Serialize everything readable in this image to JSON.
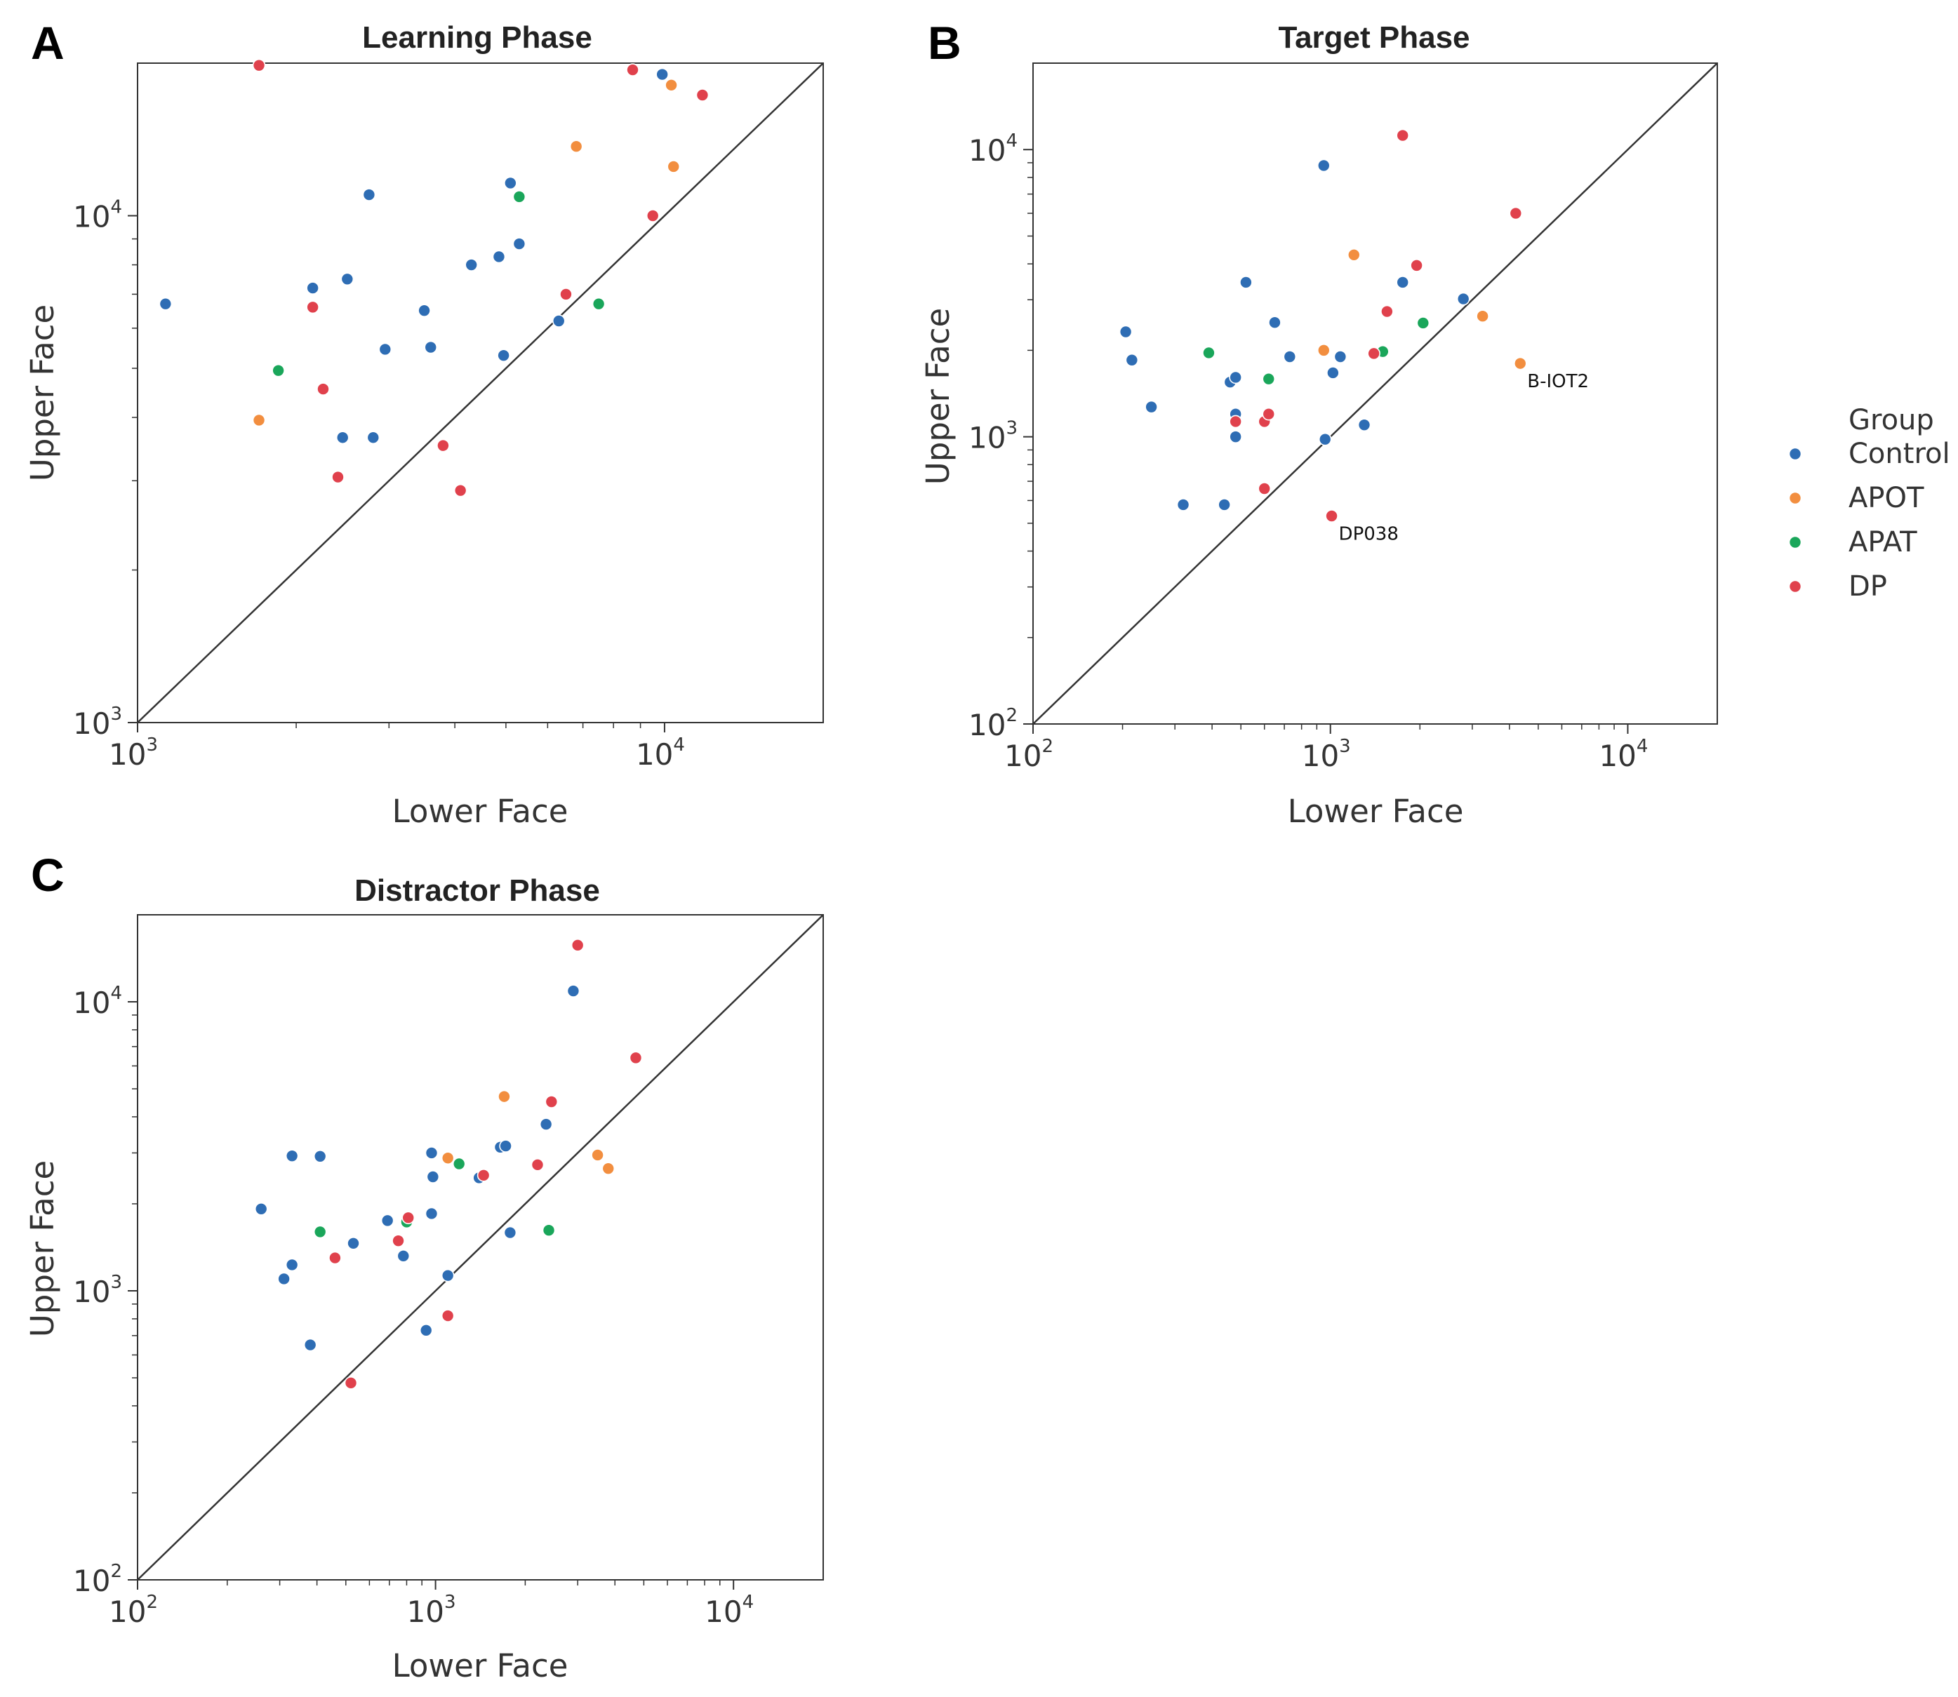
{
  "chart_data": [
    {
      "type": "scatter",
      "panel_letter": "A",
      "title": "Learning Phase",
      "xlabel": "Lower Face",
      "ylabel": "Upper Face",
      "scale": "log",
      "xlim": [
        1000,
        20000
      ],
      "ylim": [
        1000,
        20000
      ],
      "ticks": [
        {
          "base": "10",
          "exp": "3",
          "value": 1000
        },
        {
          "base": "10",
          "exp": "4",
          "value": 10000
        }
      ],
      "identity_line": true,
      "annotations": [],
      "series": [
        {
          "name": "Control",
          "points": [
            [
              1130,
              6700
            ],
            [
              2150,
              7200
            ],
            [
              2500,
              7500
            ],
            [
              2450,
              3650
            ],
            [
              2800,
              3650
            ],
            [
              2950,
              5450
            ],
            [
              2750,
              11000
            ],
            [
              3500,
              6500
            ],
            [
              3600,
              5500
            ],
            [
              4300,
              8000
            ],
            [
              4850,
              8300
            ],
            [
              5100,
              11600
            ],
            [
              5300,
              8800
            ],
            [
              4950,
              5300
            ],
            [
              6300,
              6200
            ],
            [
              9900,
              19000
            ]
          ]
        },
        {
          "name": "APOT",
          "points": [
            [
              1700,
              3950
            ],
            [
              6800,
              13700
            ],
            [
              10300,
              18100
            ],
            [
              10400,
              12500
            ]
          ]
        },
        {
          "name": "APAT",
          "points": [
            [
              1850,
              4950
            ],
            [
              5300,
              10900
            ],
            [
              7500,
              6700
            ]
          ]
        },
        {
          "name": "DP",
          "points": [
            [
              1700,
              19800
            ],
            [
              2150,
              6600
            ],
            [
              2250,
              4550
            ],
            [
              2400,
              3050
            ],
            [
              3800,
              3520
            ],
            [
              4100,
              2870
            ],
            [
              6500,
              7000
            ],
            [
              8700,
              19400
            ],
            [
              9500,
              10000
            ],
            [
              11800,
              17300
            ]
          ]
        }
      ]
    },
    {
      "type": "scatter",
      "panel_letter": "B",
      "title": "Target Phase",
      "xlabel": "Lower Face",
      "ylabel": "Upper Face",
      "scale": "log",
      "xlim": [
        100,
        20000
      ],
      "ylim": [
        100,
        20000
      ],
      "ticks": [
        {
          "base": "10",
          "exp": "2",
          "value": 100
        },
        {
          "base": "10",
          "exp": "3",
          "value": 1000
        },
        {
          "base": "10",
          "exp": "4",
          "value": 10000
        }
      ],
      "identity_line": true,
      "annotations": [
        {
          "text": "B-IOT2",
          "x": 4350,
          "y": 1800
        },
        {
          "text": "DP038",
          "x": 1010,
          "y": 530
        }
      ],
      "series": [
        {
          "name": "Control",
          "points": [
            [
              205,
              2320
            ],
            [
              215,
              1850
            ],
            [
              250,
              1270
            ],
            [
              320,
              580
            ],
            [
              440,
              580
            ],
            [
              460,
              1550
            ],
            [
              480,
              1610
            ],
            [
              480,
              1200
            ],
            [
              480,
              1000
            ],
            [
              520,
              3450
            ],
            [
              650,
              2500
            ],
            [
              730,
              1900
            ],
            [
              950,
              8800
            ],
            [
              960,
              980
            ],
            [
              1020,
              1670
            ],
            [
              1080,
              1900
            ],
            [
              1300,
              1100
            ],
            [
              1750,
              3450
            ],
            [
              2800,
              3020
            ]
          ]
        },
        {
          "name": "APOT",
          "points": [
            [
              950,
              2000
            ],
            [
              1200,
              4300
            ],
            [
              3250,
              2630
            ],
            [
              4350,
              1800
            ]
          ]
        },
        {
          "name": "APAT",
          "points": [
            [
              390,
              1960
            ],
            [
              620,
              1590
            ],
            [
              1500,
              1980
            ],
            [
              2050,
              2490
            ]
          ]
        },
        {
          "name": "DP",
          "points": [
            [
              480,
              1130
            ],
            [
              600,
              1130
            ],
            [
              600,
              660
            ],
            [
              620,
              1200
            ],
            [
              1010,
              530
            ],
            [
              1400,
              1950
            ],
            [
              1550,
              2730
            ],
            [
              1750,
              11200
            ],
            [
              1950,
              3950
            ],
            [
              4200,
              6000
            ]
          ]
        }
      ]
    },
    {
      "type": "scatter",
      "panel_letter": "C",
      "title": "Distractor Phase",
      "xlabel": "Lower Face",
      "ylabel": "Upper Face",
      "scale": "log",
      "xlim": [
        100,
        20000
      ],
      "ylim": [
        100,
        20000
      ],
      "ticks": [
        {
          "base": "10",
          "exp": "2",
          "value": 100
        },
        {
          "base": "10",
          "exp": "3",
          "value": 1000
        },
        {
          "base": "10",
          "exp": "4",
          "value": 10000
        }
      ],
      "identity_line": true,
      "annotations": [],
      "series": [
        {
          "name": "Control",
          "points": [
            [
              260,
              1920
            ],
            [
              310,
              1100
            ],
            [
              330,
              1230
            ],
            [
              330,
              2930
            ],
            [
              380,
              650
            ],
            [
              410,
              2920
            ],
            [
              530,
              1460
            ],
            [
              690,
              1750
            ],
            [
              780,
              1320
            ],
            [
              930,
              730
            ],
            [
              970,
              1850
            ],
            [
              970,
              3000
            ],
            [
              980,
              2480
            ],
            [
              1100,
              1130
            ],
            [
              1400,
              2460
            ],
            [
              1650,
              3140
            ],
            [
              1720,
              3170
            ],
            [
              1780,
              1590
            ],
            [
              2350,
              3770
            ],
            [
              2900,
              10900
            ]
          ]
        },
        {
          "name": "APOT",
          "points": [
            [
              1700,
              4700
            ],
            [
              1100,
              2880
            ],
            [
              3500,
              2950
            ],
            [
              3800,
              2650
            ]
          ]
        },
        {
          "name": "APAT",
          "points": [
            [
              410,
              1600
            ],
            [
              800,
              1730
            ],
            [
              1200,
              2750
            ],
            [
              2400,
              1620
            ]
          ]
        },
        {
          "name": "DP",
          "points": [
            [
              460,
              1300
            ],
            [
              520,
              480
            ],
            [
              750,
              1490
            ],
            [
              810,
              1790
            ],
            [
              1100,
              820
            ],
            [
              1450,
              2510
            ],
            [
              2200,
              2730
            ],
            [
              2450,
              4510
            ],
            [
              3000,
              15700
            ],
            [
              4700,
              6400
            ]
          ]
        }
      ]
    }
  ],
  "legend": {
    "title": "Group",
    "items": [
      {
        "label": "Control",
        "color": "#2e6db4"
      },
      {
        "label": "APOT",
        "color": "#f28e3f"
      },
      {
        "label": "APAT",
        "color": "#1aa65a"
      },
      {
        "label": "DP",
        "color": "#e0414c"
      }
    ]
  }
}
